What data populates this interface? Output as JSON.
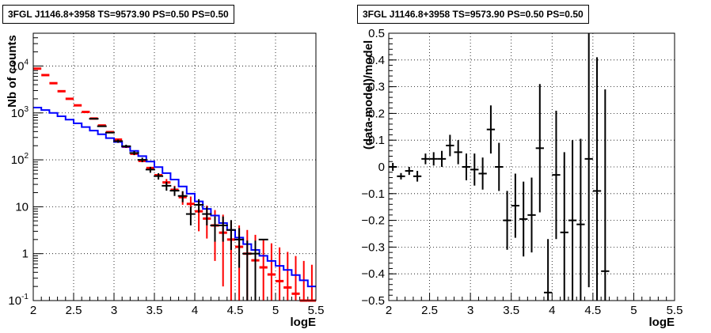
{
  "chart_data": [
    {
      "type": "histogram",
      "title": "3FGL J1146.8+3958 TS=9573.90 PS=0.50 PS=0.50",
      "xlabel": "logE",
      "ylabel": "Nb of counts",
      "xlim": [
        2,
        5.5
      ],
      "ylim": [
        0.1,
        50000
      ],
      "y_scale": "log",
      "grid": true,
      "x_ticks": [
        "2",
        "2.5",
        "3",
        "3.5",
        "4",
        "4.5",
        "5",
        "5.5"
      ],
      "y_ticks": [
        {
          "value": 0.1,
          "base": "10",
          "exp": "-1"
        },
        {
          "value": 1,
          "base": "1",
          "exp": ""
        },
        {
          "value": 10,
          "base": "10",
          "exp": ""
        },
        {
          "value": 100,
          "base": "10",
          "exp": "2"
        },
        {
          "value": 1000,
          "base": "10",
          "exp": "3"
        },
        {
          "value": 10000,
          "base": "10",
          "exp": "4"
        }
      ],
      "bin_edges": [
        2.0,
        2.1,
        2.2,
        2.3,
        2.4,
        2.5,
        2.6,
        2.7,
        2.8,
        2.9,
        3.0,
        3.1,
        3.2,
        3.3,
        3.4,
        3.5,
        3.6,
        3.7,
        3.8,
        3.9,
        4.0,
        4.1,
        4.2,
        4.3,
        4.4,
        4.5,
        4.6,
        4.7,
        4.8,
        4.9,
        5.0,
        5.1,
        5.2,
        5.3,
        5.4,
        5.5
      ],
      "series": [
        {
          "name": "model-counts",
          "color": "#ff0000",
          "values": [
            8800,
            6400,
            4300,
            2900,
            2000,
            1450,
            1050,
            760,
            540,
            390,
            270,
            190,
            135,
            95,
            67,
            47,
            33,
            23,
            16,
            11.5,
            8,
            5.6,
            4,
            2.8,
            2,
            1.4,
            1,
            0.72,
            0.51,
            0.36,
            0.26,
            0.19,
            0.14,
            0.1,
            0.08
          ],
          "err_lo": [
            0,
            0,
            0,
            0,
            0,
            0,
            0,
            0,
            0,
            0,
            0,
            0,
            0,
            0,
            0,
            0,
            6,
            5,
            5,
            4.5,
            5,
            3.5,
            3.3,
            2.6,
            2,
            1.4,
            1,
            0.72,
            0.51,
            0.36,
            0.26,
            0.19,
            0.14,
            0.1,
            0.08
          ],
          "err_hi": [
            0,
            0,
            0,
            0,
            0,
            0,
            0,
            0,
            0,
            0,
            0,
            0,
            0,
            0,
            0,
            0,
            6,
            5,
            5,
            5,
            5,
            5,
            4.5,
            4,
            3,
            2.6,
            2.2,
            1.8,
            1.5,
            1.3,
            1.1,
            0.9,
            0.75,
            0.6,
            0.5
          ]
        },
        {
          "name": "observed-counts",
          "color": "#000000",
          "values": [
            null,
            null,
            null,
            null,
            null,
            null,
            null,
            750,
            520,
            380,
            250,
            195,
            140,
            100,
            62,
            45,
            28,
            22,
            17,
            7,
            11,
            7,
            4,
            4,
            3.2,
            2,
            1,
            1,
            2,
            null,
            null,
            null,
            null,
            null,
            null
          ],
          "err_lo": [
            0,
            0,
            0,
            0,
            0,
            0,
            0,
            0,
            0,
            0,
            20,
            15,
            14,
            11,
            9,
            7,
            6,
            5,
            4.5,
            3,
            3.5,
            3,
            2.2,
            2.2,
            2,
            1.5,
            0.9,
            0.9,
            0,
            0,
            0,
            0,
            0,
            0,
            0
          ],
          "err_hi": [
            0,
            0,
            0,
            0,
            0,
            0,
            0,
            0,
            0,
            0,
            20,
            15,
            14,
            11,
            9,
            7,
            6,
            5,
            4.5,
            3,
            3.5,
            3,
            2.2,
            2.2,
            2,
            1.5,
            0.9,
            0.9,
            0,
            0,
            0,
            0,
            0,
            0,
            0
          ]
        },
        {
          "name": "model-line",
          "color": "#0000ff",
          "values": [
            1300,
            1150,
            1000,
            850,
            720,
            600,
            500,
            420,
            350,
            290,
            240,
            190,
            155,
            120,
            92,
            70,
            52,
            38,
            27,
            19,
            13,
            9,
            6.5,
            4.5,
            3.2,
            2.2,
            1.6,
            1.2,
            0.9,
            0.7,
            0.55,
            0.45,
            0.35,
            0.27,
            0.2
          ]
        }
      ]
    },
    {
      "type": "scatter",
      "title": "3FGL J1146.8+3958 TS=9573.90 PS=0.50 PS=0.50",
      "xlabel": "logE",
      "ylabel": "(data-model)/model",
      "xlim": [
        2,
        5.5
      ],
      "ylim": [
        -0.5,
        0.5
      ],
      "grid": true,
      "x_ticks": [
        "2",
        "2.5",
        "3",
        "3.5",
        "4",
        "4.5",
        "5",
        "5.5"
      ],
      "y_ticks": [
        "-0.5",
        "-0.4",
        "-0.3",
        "-0.2",
        "-0.1",
        "0",
        "0.1",
        "0.2",
        "0.3",
        "0.4",
        "0.5"
      ],
      "x_half_width": 0.05,
      "series": [
        {
          "name": "residuals",
          "color": "#000000",
          "x": [
            2.05,
            2.15,
            2.25,
            2.35,
            2.45,
            2.55,
            2.65,
            2.75,
            2.85,
            2.95,
            3.05,
            3.15,
            3.25,
            3.35,
            3.45,
            3.55,
            3.65,
            3.75,
            3.85,
            3.95,
            4.05,
            4.15,
            4.25,
            4.35,
            4.45,
            4.55,
            4.65
          ],
          "y": [
            0.0,
            -0.035,
            -0.015,
            -0.035,
            0.03,
            0.03,
            0.03,
            0.08,
            0.055,
            0.0,
            -0.01,
            -0.025,
            0.14,
            0.0,
            -0.2,
            -0.145,
            -0.195,
            -0.18,
            0.07,
            -0.47,
            -0.03,
            -0.245,
            -0.2,
            -0.215,
            0.03,
            -0.09,
            -0.39
          ],
          "err": [
            0.015,
            0.012,
            0.015,
            0.02,
            0.02,
            0.025,
            0.03,
            0.04,
            0.045,
            0.05,
            0.06,
            0.06,
            0.09,
            0.09,
            0.11,
            0.12,
            0.14,
            0.14,
            0.24,
            0.2,
            0.24,
            0.3,
            0.3,
            0.32,
            0.48,
            0.5,
            0.68
          ]
        }
      ]
    }
  ]
}
